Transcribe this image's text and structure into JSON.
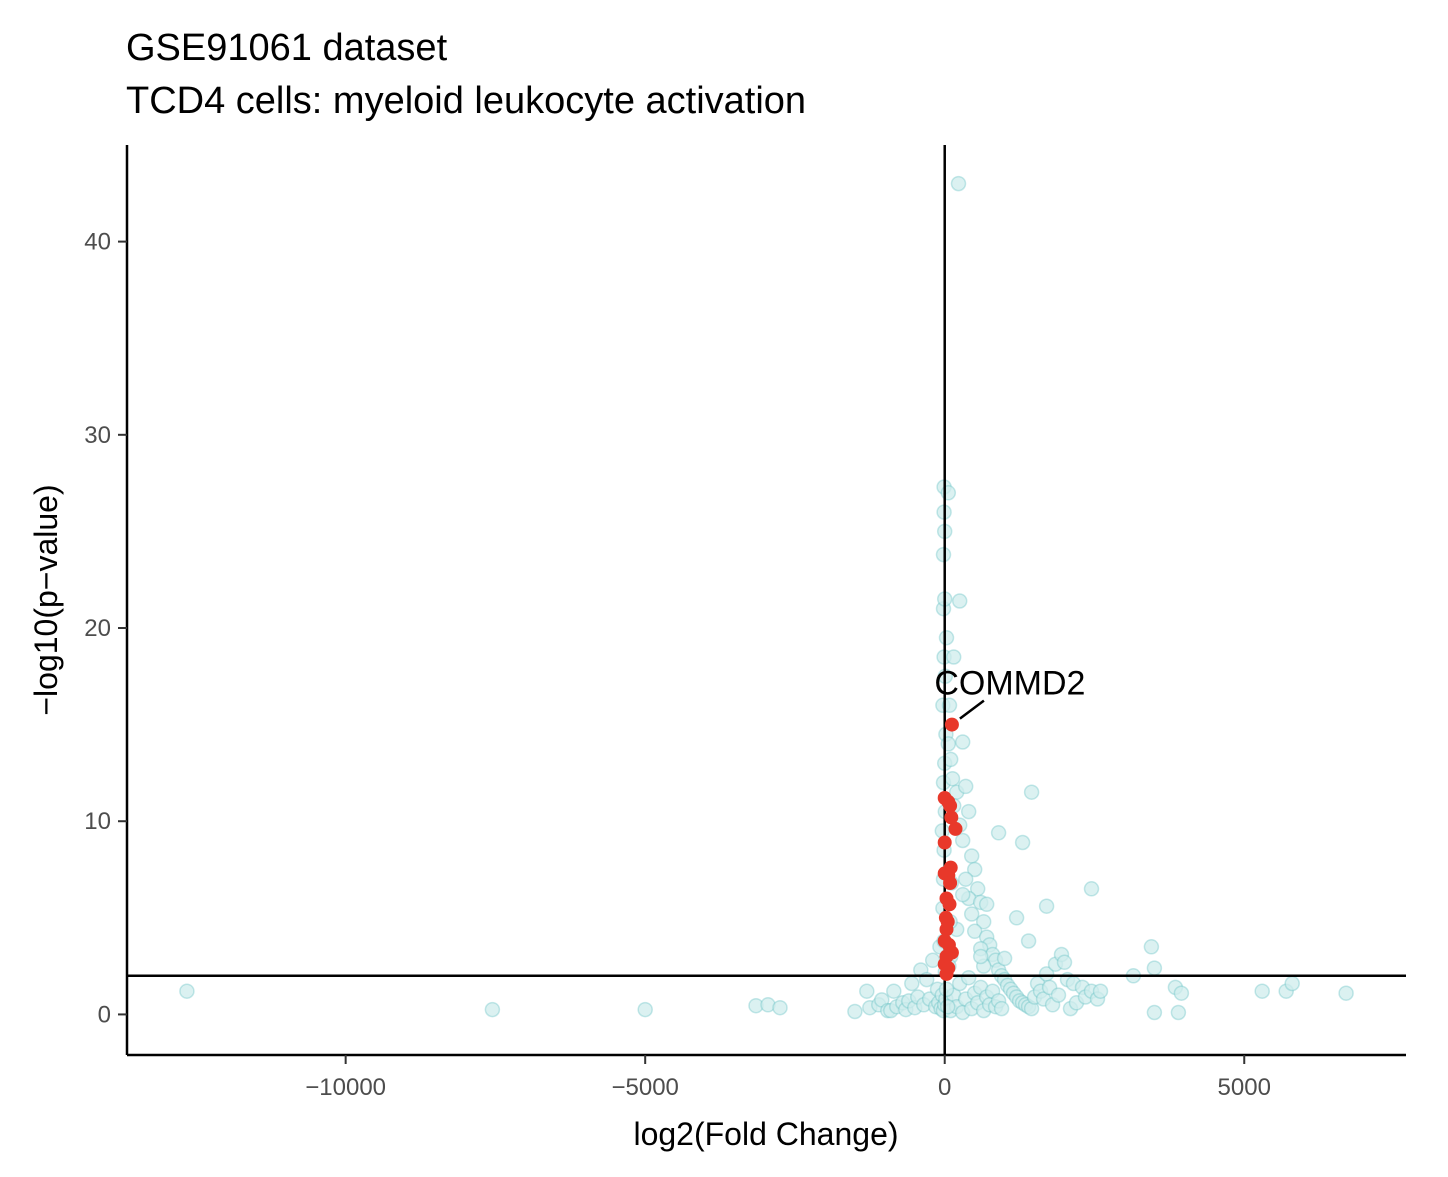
{
  "chart_data": {
    "type": "scatter",
    "title": "GSE91061 dataset",
    "subtitle": "TCD4 cells: myeloid leukocyte activation",
    "xlabel": "log2(Fold Change)",
    "ylabel": "−log10(p−value)",
    "xlim": [
      -13650,
      7700
    ],
    "ylim": [
      -2.1,
      45
    ],
    "x_ticks": [
      -10000,
      -5000,
      0,
      5000
    ],
    "x_tick_labels": [
      "−10000",
      "−5000",
      "0",
      "5000"
    ],
    "y_ticks": [
      0,
      10,
      20,
      30,
      40
    ],
    "y_tick_labels": [
      "0",
      "10",
      "20",
      "30",
      "40"
    ],
    "grid": false,
    "legend": "none",
    "reference_lines": {
      "vertical_x": 0,
      "horizontal_y": 2
    },
    "colors": {
      "background": "#cfecec",
      "highlight": "#e8382a",
      "axis": "#000000"
    },
    "annotation": {
      "label": "COMMD2",
      "x": 120,
      "y": 15.0
    },
    "series": [
      {
        "role": "background",
        "points": [
          [
            -12650,
            1.2
          ],
          [
            -7550,
            0.25
          ],
          [
            -5000,
            0.25
          ],
          [
            -3150,
            0.45
          ],
          [
            -2950,
            0.5
          ],
          [
            -2750,
            0.35
          ],
          [
            -1500,
            0.15
          ],
          [
            -1300,
            1.2
          ],
          [
            -1250,
            0.35
          ],
          [
            -1100,
            0.5
          ],
          [
            -1050,
            0.75
          ],
          [
            -950,
            0.2
          ],
          [
            -900,
            0.2
          ],
          [
            -850,
            1.2
          ],
          [
            -800,
            0.4
          ],
          [
            -700,
            0.6
          ],
          [
            -650,
            0.25
          ],
          [
            -600,
            0.7
          ],
          [
            -550,
            1.6
          ],
          [
            -500,
            0.35
          ],
          [
            -450,
            0.9
          ],
          [
            -400,
            2.3
          ],
          [
            -350,
            0.5
          ],
          [
            -300,
            1.8
          ],
          [
            -250,
            0.8
          ],
          [
            -200,
            2.8
          ],
          [
            -150,
            0.4
          ],
          [
            -120,
            1.3
          ],
          [
            -100,
            0.6
          ],
          [
            -80,
            3.5
          ],
          [
            -60,
            0.3
          ],
          [
            -40,
            1.0
          ],
          [
            -20,
            0.2
          ],
          [
            0,
            0.5
          ],
          [
            10,
            2.2
          ],
          [
            20,
            0.8
          ],
          [
            -10,
            3.8
          ],
          [
            -30,
            5.5
          ],
          [
            -20,
            7.0
          ],
          [
            -10,
            8.5
          ],
          [
            -40,
            9.5
          ],
          [
            10,
            10.5
          ],
          [
            -20,
            12.0
          ],
          [
            0,
            13.0
          ],
          [
            20,
            14.5
          ],
          [
            -30,
            16.0
          ],
          [
            10,
            17.5
          ],
          [
            -10,
            18.5
          ],
          [
            30,
            19.5
          ],
          [
            -20,
            21.0
          ],
          [
            0,
            21.5
          ],
          [
            -20,
            23.8
          ],
          [
            0,
            25.0
          ],
          [
            -10,
            26.0
          ],
          [
            -10,
            27.3
          ],
          [
            60,
            27.0
          ],
          [
            250,
            21.4
          ],
          [
            150,
            18.5
          ],
          [
            230,
            43.0
          ],
          [
            80,
            16.0
          ],
          [
            60,
            14.0
          ],
          [
            100,
            13.2
          ],
          [
            130,
            12.2
          ],
          [
            200,
            11.5
          ],
          [
            300,
            14.1
          ],
          [
            150,
            10.8
          ],
          [
            250,
            9.8
          ],
          [
            350,
            11.8
          ],
          [
            400,
            10.5
          ],
          [
            300,
            9.0
          ],
          [
            450,
            8.2
          ],
          [
            500,
            7.5
          ],
          [
            350,
            7.0
          ],
          [
            550,
            6.5
          ],
          [
            400,
            6.0
          ],
          [
            600,
            5.8
          ],
          [
            450,
            5.2
          ],
          [
            650,
            4.8
          ],
          [
            500,
            4.3
          ],
          [
            700,
            4.0
          ],
          [
            750,
            3.6
          ],
          [
            600,
            3.4
          ],
          [
            800,
            3.1
          ],
          [
            850,
            2.8
          ],
          [
            650,
            2.5
          ],
          [
            900,
            2.3
          ],
          [
            950,
            2.0
          ],
          [
            1000,
            1.8
          ],
          [
            1050,
            1.5
          ],
          [
            1100,
            1.3
          ],
          [
            1150,
            1.1
          ],
          [
            1200,
            0.9
          ],
          [
            1250,
            0.7
          ],
          [
            1300,
            0.6
          ],
          [
            1350,
            0.5
          ],
          [
            1400,
            0.4
          ],
          [
            1450,
            0.3
          ],
          [
            1500,
            0.9
          ],
          [
            1550,
            1.6
          ],
          [
            1600,
            1.2
          ],
          [
            1650,
            0.8
          ],
          [
            1700,
            2.1
          ],
          [
            1750,
            1.4
          ],
          [
            1800,
            0.5
          ],
          [
            1850,
            2.6
          ],
          [
            1900,
            1.0
          ],
          [
            1950,
            3.1
          ],
          [
            2000,
            2.7
          ],
          [
            2050,
            1.8
          ],
          [
            2100,
            0.3
          ],
          [
            2150,
            1.6
          ],
          [
            2200,
            0.6
          ],
          [
            2300,
            1.4
          ],
          [
            2350,
            0.9
          ],
          [
            2450,
            1.2
          ],
          [
            2550,
            0.8
          ],
          [
            2600,
            1.2
          ],
          [
            3150,
            2.0
          ],
          [
            3450,
            3.5
          ],
          [
            3500,
            2.4
          ],
          [
            3500,
            0.1
          ],
          [
            3850,
            1.4
          ],
          [
            3950,
            1.1
          ],
          [
            3900,
            0.1
          ],
          [
            5300,
            1.2
          ],
          [
            5700,
            1.2
          ],
          [
            5800,
            1.6
          ],
          [
            6700,
            1.1
          ],
          [
            1450,
            11.5
          ],
          [
            900,
            9.4
          ],
          [
            1300,
            8.9
          ],
          [
            2450,
            6.5
          ],
          [
            1200,
            5.0
          ],
          [
            1700,
            5.6
          ],
          [
            1400,
            3.8
          ],
          [
            1000,
            2.9
          ],
          [
            700,
            5.7
          ],
          [
            300,
            6.2
          ],
          [
            600,
            3.0
          ],
          [
            200,
            4.4
          ],
          [
            100,
            3.0
          ],
          [
            100,
            0.2
          ],
          [
            150,
            1.0
          ],
          [
            200,
            0.4
          ],
          [
            250,
            1.6
          ],
          [
            300,
            0.1
          ],
          [
            350,
            0.8
          ],
          [
            400,
            1.9
          ],
          [
            450,
            0.3
          ],
          [
            500,
            1.1
          ],
          [
            550,
            0.6
          ],
          [
            600,
            1.4
          ],
          [
            650,
            0.2
          ],
          [
            700,
            0.9
          ],
          [
            750,
            0.5
          ],
          [
            800,
            1.2
          ],
          [
            850,
            0.4
          ],
          [
            900,
            0.7
          ],
          [
            950,
            0.3
          ],
          [
            50,
            0.4
          ],
          [
            30,
            1.3
          ],
          [
            70,
            2.5
          ],
          [
            90,
            4.8
          ],
          [
            110,
            6.8
          ]
        ]
      },
      {
        "role": "highlight",
        "points": [
          [
            120,
            15.0
          ],
          [
            0,
            11.2
          ],
          [
            60,
            11.0
          ],
          [
            90,
            10.8
          ],
          [
            110,
            10.2
          ],
          [
            180,
            9.6
          ],
          [
            0,
            8.9
          ],
          [
            100,
            7.6
          ],
          [
            60,
            7.2
          ],
          [
            0,
            7.3
          ],
          [
            90,
            6.8
          ],
          [
            30,
            6.0
          ],
          [
            80,
            5.7
          ],
          [
            20,
            5.0
          ],
          [
            50,
            4.8
          ],
          [
            30,
            4.4
          ],
          [
            0,
            3.8
          ],
          [
            70,
            3.6
          ],
          [
            120,
            3.2
          ],
          [
            30,
            3.0
          ],
          [
            0,
            2.6
          ],
          [
            60,
            2.4
          ],
          [
            30,
            2.1
          ]
        ]
      }
    ]
  }
}
